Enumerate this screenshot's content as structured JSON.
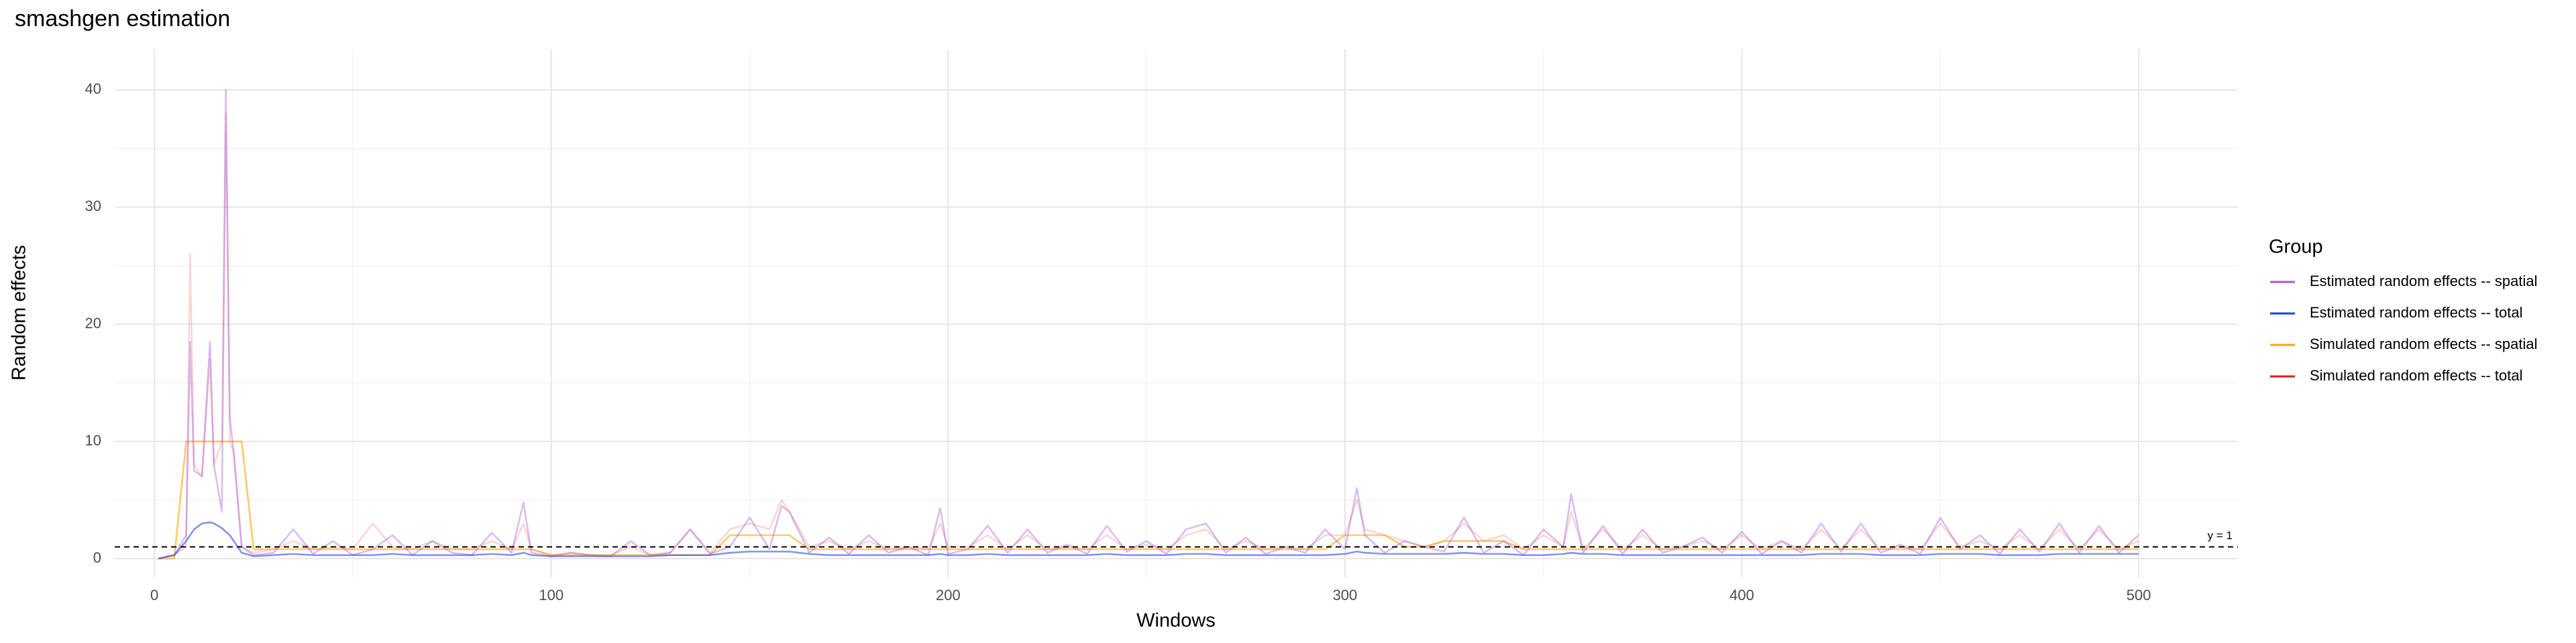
{
  "chart_data": {
    "type": "line",
    "title": "smashgen estimation",
    "x_label": "Windows",
    "y_label": "Random effects",
    "legend_title": "Group",
    "grid": true,
    "legend_position": "right",
    "x": [
      1,
      5,
      8,
      9,
      10,
      12,
      14,
      15,
      17,
      18,
      19,
      20,
      22,
      25,
      30,
      35,
      40,
      45,
      50,
      55,
      60,
      65,
      70,
      75,
      80,
      85,
      90,
      93,
      95,
      100,
      105,
      110,
      115,
      120,
      125,
      130,
      135,
      140,
      145,
      150,
      155,
      158,
      160,
      165,
      170,
      175,
      180,
      185,
      190,
      195,
      198,
      200,
      205,
      210,
      215,
      220,
      225,
      230,
      235,
      240,
      245,
      250,
      255,
      260,
      265,
      270,
      275,
      280,
      285,
      290,
      295,
      300,
      303,
      305,
      310,
      315,
      320,
      325,
      330,
      335,
      340,
      345,
      350,
      355,
      357,
      360,
      365,
      370,
      375,
      380,
      385,
      390,
      395,
      400,
      405,
      410,
      415,
      420,
      425,
      430,
      435,
      440,
      445,
      450,
      455,
      460,
      465,
      470,
      475,
      480,
      485,
      490,
      495,
      500
    ],
    "series": [
      {
        "name": "Estimated random effects -- spatial",
        "color": "#a05ad6",
        "values": [
          0,
          0.3,
          2,
          18.5,
          7.5,
          7,
          18.5,
          8,
          4,
          40,
          12,
          9,
          1,
          0.3,
          0.5,
          2.5,
          0.4,
          1.5,
          0.3,
          0.8,
          2,
          0.3,
          1.5,
          0.5,
          0.3,
          2.2,
          0.5,
          4.8,
          0.5,
          0.2,
          0.5,
          0.3,
          0.2,
          1.5,
          0.3,
          0.5,
          2.5,
          0.4,
          1,
          3.5,
          0.8,
          4.5,
          4,
          0.5,
          1.8,
          0.4,
          2,
          0.5,
          1,
          0.3,
          4.3,
          0.4,
          0.8,
          2.8,
          0.5,
          2.5,
          0.5,
          1.2,
          0.4,
          2.8,
          0.6,
          1.5,
          0.4,
          2.5,
          3,
          0.5,
          1.8,
          0.4,
          1,
          0.5,
          2.5,
          0.8,
          6,
          2,
          0.5,
          1.5,
          1,
          0.6,
          3.5,
          0.5,
          1.5,
          0.3,
          2.5,
          1,
          5.5,
          0.5,
          2.8,
          0.4,
          2.5,
          0.5,
          1,
          1.8,
          0.5,
          2.3,
          0.4,
          1.5,
          0.5,
          3,
          0.6,
          3,
          0.5,
          1.2,
          0.4,
          3.5,
          0.8,
          2,
          0.4,
          2.5,
          0.6,
          3,
          0.5,
          2.8,
          0.5,
          2
        ]
      },
      {
        "name": "Estimated random effects -- total",
        "color": "#1f3de0",
        "values": [
          0,
          0.3,
          1.5,
          2,
          2.5,
          3,
          3.1,
          3,
          2.6,
          2.3,
          2,
          1.5,
          0.5,
          0.2,
          0.3,
          0.4,
          0.3,
          0.3,
          0.3,
          0.3,
          0.4,
          0.3,
          0.3,
          0.3,
          0.3,
          0.4,
          0.3,
          0.5,
          0.3,
          0.2,
          0.2,
          0.2,
          0.2,
          0.2,
          0.2,
          0.3,
          0.3,
          0.3,
          0.5,
          0.6,
          0.6,
          0.6,
          0.6,
          0.4,
          0.3,
          0.3,
          0.3,
          0.3,
          0.3,
          0.3,
          0.4,
          0.3,
          0.3,
          0.4,
          0.3,
          0.3,
          0.3,
          0.3,
          0.3,
          0.4,
          0.3,
          0.3,
          0.3,
          0.4,
          0.4,
          0.3,
          0.3,
          0.3,
          0.3,
          0.3,
          0.3,
          0.4,
          0.6,
          0.5,
          0.4,
          0.4,
          0.4,
          0.4,
          0.5,
          0.4,
          0.4,
          0.3,
          0.3,
          0.4,
          0.5,
          0.4,
          0.4,
          0.3,
          0.3,
          0.3,
          0.3,
          0.3,
          0.3,
          0.3,
          0.3,
          0.3,
          0.3,
          0.4,
          0.4,
          0.4,
          0.3,
          0.3,
          0.3,
          0.4,
          0.4,
          0.4,
          0.3,
          0.3,
          0.3,
          0.4,
          0.4,
          0.4,
          0.4,
          0.4
        ]
      },
      {
        "name": "Simulated random effects -- spatial",
        "color": "#ffa500",
        "values": [
          0,
          0,
          10,
          10,
          10,
          10,
          10,
          10,
          10,
          10,
          10,
          10,
          10,
          0.8,
          0.8,
          0.8,
          0.8,
          0.8,
          0.8,
          0.8,
          0.8,
          0.8,
          0.8,
          0.8,
          0.8,
          0.8,
          0.8,
          0.8,
          0.8,
          0.3,
          0.3,
          0.3,
          0.3,
          0.3,
          0.3,
          0.3,
          0.3,
          0.3,
          2,
          2,
          2,
          2,
          2,
          0.8,
          0.8,
          0.8,
          0.8,
          0.8,
          0.8,
          0.8,
          0.8,
          0.8,
          0.8,
          0.8,
          0.8,
          0.8,
          0.8,
          0.8,
          0.8,
          0.8,
          0.8,
          0.8,
          0.8,
          0.8,
          0.8,
          0.8,
          0.8,
          0.8,
          0.8,
          0.8,
          0.8,
          2,
          2,
          2,
          2,
          1,
          1,
          1.5,
          1.5,
          1.5,
          1.5,
          0.8,
          0.8,
          0.8,
          0.8,
          0.8,
          0.8,
          0.8,
          0.8,
          0.8,
          0.8,
          0.8,
          0.8,
          0.8,
          0.8,
          0.8,
          0.8,
          0.8,
          0.8,
          0.8,
          0.8,
          0.8,
          0.8,
          0.8,
          0.8,
          0.8,
          0.8,
          0.8,
          0.8,
          0.8,
          0.8,
          0.8,
          0.8,
          0.8
        ]
      },
      {
        "name": "Simulated random effects -- total",
        "color": "#e8141c",
        "values": [
          0,
          0.3,
          1,
          26,
          8,
          7,
          17,
          8,
          10,
          38,
          10,
          9,
          1,
          0.5,
          0.8,
          1.5,
          0.8,
          1,
          0.8,
          3,
          1,
          0.8,
          1.5,
          0.8,
          0.8,
          1.5,
          0.8,
          3,
          0.8,
          0.3,
          0.5,
          0.3,
          0.3,
          1,
          0.3,
          0.5,
          2.5,
          0.5,
          2.5,
          3,
          2.5,
          5,
          4,
          1,
          1.5,
          0.8,
          1.5,
          0.8,
          1,
          0.8,
          3,
          1,
          1,
          2,
          0.8,
          2,
          0.8,
          1,
          0.8,
          2,
          0.8,
          1.2,
          0.8,
          2,
          2.5,
          0.8,
          1.5,
          0.8,
          1,
          0.8,
          2,
          2,
          5,
          2.5,
          2,
          1.5,
          1,
          1.5,
          3,
          1.5,
          2,
          0.8,
          2,
          1,
          4,
          0.8,
          2.5,
          0.8,
          2,
          0.8,
          1,
          1.5,
          0.8,
          2,
          0.8,
          1.5,
          0.8,
          2.5,
          0.8,
          2.5,
          0.8,
          1,
          0.8,
          3,
          1,
          1.5,
          0.8,
          2,
          0.8,
          2.5,
          0.8,
          2.5,
          0.8,
          1.5
        ]
      }
    ],
    "hline": {
      "value": 1,
      "label": "y = 1"
    },
    "xlim": [
      -10,
      525
    ],
    "xticks": [
      0,
      100,
      200,
      300,
      400,
      500
    ],
    "ylim": [
      -1.6,
      43.5
    ],
    "yticks": [
      0,
      10,
      20,
      30,
      40
    ]
  }
}
